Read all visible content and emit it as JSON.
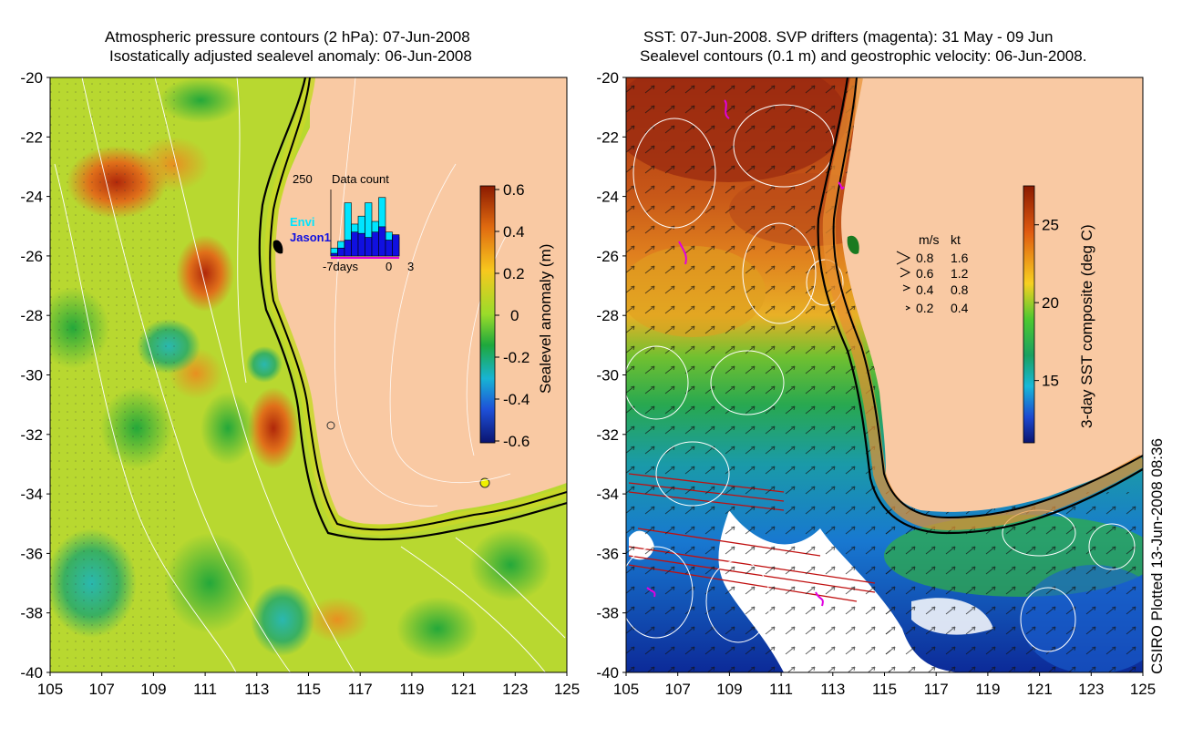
{
  "left_panel": {
    "title_line1": "Atmospheric pressure contours (2 hPa): 07-Jun-2008",
    "title_line2": "Isostatically adjusted sealevel anomaly: 06-Jun-2008",
    "x_ticks": [
      "105",
      "107",
      "109",
      "111",
      "113",
      "115",
      "117",
      "119",
      "121",
      "123",
      "125"
    ],
    "y_ticks": [
      "-20",
      "-22",
      "-24",
      "-26",
      "-28",
      "-30",
      "-32",
      "-34",
      "-36",
      "-38",
      "-40"
    ],
    "colorbar": {
      "label": "Sealevel anomaly (m)",
      "ticks": [
        "0.6",
        "0.4",
        "0.2",
        "0",
        "-0.2",
        "-0.4",
        "-0.6"
      ]
    },
    "data_count": {
      "title": "Data count",
      "max_label": "250",
      "envi_label": "Envi",
      "jason_label": "Jason1",
      "x_start": "-7days",
      "x_zero": "0",
      "x_end": "3",
      "envi_values": [
        30,
        55,
        200,
        120,
        150,
        200,
        130,
        220,
        90,
        70
      ],
      "jason_values": [
        10,
        30,
        60,
        90,
        85,
        70,
        90,
        110,
        60,
        80
      ],
      "envi_color": "#00e5ff",
      "jason_color": "#1010e0"
    }
  },
  "right_panel": {
    "title_line1": "SST: 07-Jun-2008. SVP drifters (magenta): 31 May - 09 Jun",
    "title_line2": "Sealevel contours (0.1 m) and geostrophic velocity: 06-Jun-2008.",
    "x_ticks": [
      "105",
      "107",
      "109",
      "111",
      "113",
      "115",
      "117",
      "119",
      "121",
      "123",
      "125"
    ],
    "y_ticks": [
      "-20",
      "-22",
      "-24",
      "-26",
      "-28",
      "-30",
      "-32",
      "-34",
      "-36",
      "-38",
      "-40"
    ],
    "colorbar": {
      "label": "3-day SST composite (deg C)",
      "ticks": [
        "25",
        "20",
        "15"
      ]
    },
    "velocity_legend": {
      "header_ms": "m/s",
      "header_kt": "kt",
      "rows": [
        {
          "ms": "0.8",
          "kt": "1.6"
        },
        {
          "ms": "0.6",
          "kt": "1.2"
        },
        {
          "ms": "0.4",
          "kt": "0.8"
        },
        {
          "ms": "0.2",
          "kt": "0.4"
        }
      ]
    }
  },
  "footer": {
    "credit": "CSIRO Plotted 13-Jun-2008 08:36"
  },
  "colors": {
    "land": "#f9c9a3",
    "coast": "#000000",
    "contour": "#ffffff",
    "drifter": "#e000e0"
  }
}
